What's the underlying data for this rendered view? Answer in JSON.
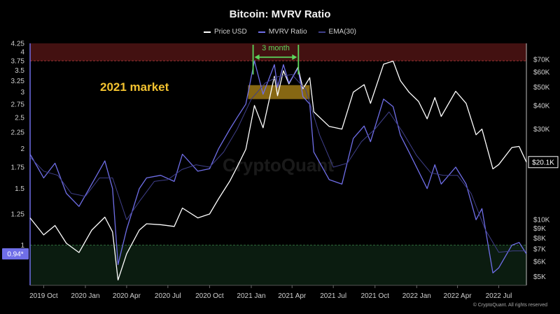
{
  "chart_data": {
    "type": "line",
    "title": "Bitcoin: MVRV Ratio",
    "legend": [
      "Price USD",
      "MVRV Ratio",
      "EMA(30)"
    ],
    "legend_position": "top-center",
    "grid": false,
    "x_ticks": [
      "2019 Oct",
      "2020 Jan",
      "2020 Apr",
      "2020 Jul",
      "2020 Oct",
      "2021 Jan",
      "2021 Apr",
      "2021 Jul",
      "2021 Oct",
      "2022 Jan",
      "2022 Apr",
      "2022 Jul"
    ],
    "x_range": [
      "2019-09-01",
      "2022-08-31"
    ],
    "left_axis": {
      "label": "",
      "scale": "log",
      "range": [
        0.75,
        4.25
      ],
      "ticks": [
        "4.25",
        "4",
        "3.75",
        "3.5",
        "3.25",
        "3",
        "2.75",
        "2.5",
        "2.25",
        "2",
        "1.75",
        "1.5",
        "1.25",
        "1"
      ]
    },
    "right_axis": {
      "label": "",
      "scale": "log",
      "range": [
        4500,
        85000
      ],
      "ticks": [
        "$70K",
        "$60K",
        "$50K",
        "$40K",
        "$30K",
        "$10K",
        "$9K",
        "$8K",
        "$7K",
        "$6K",
        "$5K"
      ]
    },
    "current_values": {
      "mvrv": "0.94*",
      "price": "$20.1K"
    },
    "series": [
      {
        "name": "Price USD",
        "color": "#ffffff",
        "axis": "right",
        "points": [
          [
            "2019-09-01",
            10200
          ],
          [
            "2019-10-01",
            8300
          ],
          [
            "2019-10-26",
            9300
          ],
          [
            "2019-11-20",
            7500
          ],
          [
            "2019-12-18",
            6700
          ],
          [
            "2020-01-15",
            8800
          ],
          [
            "2020-02-13",
            10300
          ],
          [
            "2020-03-01",
            8600
          ],
          [
            "2020-03-13",
            4800
          ],
          [
            "2020-04-01",
            6600
          ],
          [
            "2020-04-29",
            8800
          ],
          [
            "2020-05-15",
            9500
          ],
          [
            "2020-06-15",
            9400
          ],
          [
            "2020-07-15",
            9200
          ],
          [
            "2020-08-02",
            11500
          ],
          [
            "2020-09-05",
            10200
          ],
          [
            "2020-10-01",
            10700
          ],
          [
            "2020-10-21",
            12900
          ],
          [
            "2020-11-15",
            16000
          ],
          [
            "2020-12-01",
            19000
          ],
          [
            "2020-12-20",
            23500
          ],
          [
            "2021-01-08",
            40000
          ],
          [
            "2021-01-27",
            30500
          ],
          [
            "2021-02-21",
            57000
          ],
          [
            "2021-02-28",
            45000
          ],
          [
            "2021-03-13",
            61000
          ],
          [
            "2021-03-25",
            52000
          ],
          [
            "2021-04-14",
            63500
          ],
          [
            "2021-04-25",
            49000
          ],
          [
            "2021-05-10",
            56000
          ],
          [
            "2021-05-19",
            37000
          ],
          [
            "2021-06-22",
            31000
          ],
          [
            "2021-07-20",
            30000
          ],
          [
            "2021-08-14",
            47000
          ],
          [
            "2021-09-07",
            51500
          ],
          [
            "2021-09-21",
            41000
          ],
          [
            "2021-10-20",
            66000
          ],
          [
            "2021-11-10",
            68500
          ],
          [
            "2021-11-26",
            54000
          ],
          [
            "2021-12-15",
            47000
          ],
          [
            "2022-01-05",
            42000
          ],
          [
            "2022-01-24",
            34000
          ],
          [
            "2022-02-10",
            44000
          ],
          [
            "2022-02-24",
            35000
          ],
          [
            "2022-03-28",
            47500
          ],
          [
            "2022-04-20",
            41000
          ],
          [
            "2022-05-12",
            28000
          ],
          [
            "2022-05-25",
            30000
          ],
          [
            "2022-06-18",
            18500
          ],
          [
            "2022-07-01",
            19500
          ],
          [
            "2022-07-30",
            24000
          ],
          [
            "2022-08-15",
            24300
          ],
          [
            "2022-08-31",
            20100
          ]
        ]
      },
      {
        "name": "MVRV Ratio",
        "color": "#6f6ee8",
        "axis": "left",
        "points": [
          [
            "2019-09-01",
            1.92
          ],
          [
            "2019-10-01",
            1.62
          ],
          [
            "2019-10-26",
            1.8
          ],
          [
            "2019-11-20",
            1.45
          ],
          [
            "2019-12-18",
            1.32
          ],
          [
            "2020-01-15",
            1.55
          ],
          [
            "2020-02-13",
            1.83
          ],
          [
            "2020-03-01",
            1.5
          ],
          [
            "2020-03-13",
            0.87
          ],
          [
            "2020-04-01",
            1.12
          ],
          [
            "2020-04-29",
            1.5
          ],
          [
            "2020-05-15",
            1.62
          ],
          [
            "2020-06-15",
            1.65
          ],
          [
            "2020-07-15",
            1.58
          ],
          [
            "2020-08-02",
            1.92
          ],
          [
            "2020-09-05",
            1.7
          ],
          [
            "2020-10-01",
            1.73
          ],
          [
            "2020-10-21",
            2.0
          ],
          [
            "2020-11-15",
            2.3
          ],
          [
            "2020-12-01",
            2.5
          ],
          [
            "2020-12-20",
            2.75
          ],
          [
            "2021-01-08",
            3.75
          ],
          [
            "2021-01-27",
            2.95
          ],
          [
            "2021-02-21",
            3.65
          ],
          [
            "2021-02-28",
            3.1
          ],
          [
            "2021-03-13",
            3.65
          ],
          [
            "2021-03-25",
            3.2
          ],
          [
            "2021-04-14",
            3.55
          ],
          [
            "2021-04-25",
            2.9
          ],
          [
            "2021-05-10",
            2.75
          ],
          [
            "2021-05-19",
            1.95
          ],
          [
            "2021-06-22",
            1.6
          ],
          [
            "2021-07-20",
            1.55
          ],
          [
            "2021-08-14",
            2.15
          ],
          [
            "2021-09-07",
            2.35
          ],
          [
            "2021-09-21",
            2.1
          ],
          [
            "2021-10-20",
            2.85
          ],
          [
            "2021-11-10",
            2.7
          ],
          [
            "2021-11-26",
            2.2
          ],
          [
            "2021-12-15",
            1.95
          ],
          [
            "2022-01-05",
            1.7
          ],
          [
            "2022-01-24",
            1.5
          ],
          [
            "2022-02-10",
            1.78
          ],
          [
            "2022-02-24",
            1.55
          ],
          [
            "2022-03-28",
            1.75
          ],
          [
            "2022-04-20",
            1.55
          ],
          [
            "2022-05-12",
            1.2
          ],
          [
            "2022-05-25",
            1.3
          ],
          [
            "2022-06-18",
            0.82
          ],
          [
            "2022-07-01",
            0.85
          ],
          [
            "2022-07-30",
            1.0
          ],
          [
            "2022-08-15",
            1.02
          ],
          [
            "2022-08-31",
            0.94
          ]
        ]
      },
      {
        "name": "EMA(30)",
        "color": "#3f3f8a",
        "axis": "left",
        "points": [
          [
            "2019-09-01",
            1.88
          ],
          [
            "2019-10-01",
            1.7
          ],
          [
            "2019-11-01",
            1.65
          ],
          [
            "2019-12-01",
            1.45
          ],
          [
            "2020-01-01",
            1.42
          ],
          [
            "2020-02-01",
            1.62
          ],
          [
            "2020-03-01",
            1.62
          ],
          [
            "2020-04-01",
            1.2
          ],
          [
            "2020-05-01",
            1.38
          ],
          [
            "2020-06-01",
            1.58
          ],
          [
            "2020-07-01",
            1.6
          ],
          [
            "2020-08-01",
            1.72
          ],
          [
            "2020-09-01",
            1.78
          ],
          [
            "2020-10-01",
            1.75
          ],
          [
            "2020-11-01",
            1.95
          ],
          [
            "2020-12-01",
            2.3
          ],
          [
            "2021-01-01",
            2.85
          ],
          [
            "2021-02-01",
            3.2
          ],
          [
            "2021-03-01",
            3.35
          ],
          [
            "2021-04-01",
            3.4
          ],
          [
            "2021-05-01",
            3.05
          ],
          [
            "2021-06-01",
            2.2
          ],
          [
            "2021-07-01",
            1.75
          ],
          [
            "2021-08-01",
            1.8
          ],
          [
            "2021-09-01",
            2.1
          ],
          [
            "2021-10-01",
            2.3
          ],
          [
            "2021-11-01",
            2.6
          ],
          [
            "2021-12-01",
            2.25
          ],
          [
            "2022-01-01",
            1.9
          ],
          [
            "2022-02-01",
            1.68
          ],
          [
            "2022-03-01",
            1.65
          ],
          [
            "2022-04-01",
            1.65
          ],
          [
            "2022-05-01",
            1.45
          ],
          [
            "2022-06-01",
            1.12
          ],
          [
            "2022-07-01",
            0.95
          ],
          [
            "2022-08-01",
            0.96
          ],
          [
            "2022-08-31",
            0.96
          ]
        ]
      }
    ],
    "zones": [
      {
        "name": "overvalued",
        "color": "#7a1f1f",
        "from": 3.75,
        "to": 4.25
      },
      {
        "name": "undervalued",
        "color": "#14331e",
        "from": 0.75,
        "to": 1.0
      }
    ],
    "annotations": [
      {
        "text": "3 month",
        "color": "#5cd65c",
        "from": "2021-01-05",
        "to": "2021-04-15",
        "at": 3.85
      },
      {
        "text": "2021 market",
        "color": "#f2c230"
      },
      {
        "box_from": "2020-12-25",
        "box_to": "2021-05-10",
        "y_from": 2.85,
        "y_to": 3.15,
        "color": "#b38a1a"
      }
    ],
    "watermark": "CryptoQuant",
    "footer": "© CryptoQuant. All rights reserved"
  }
}
